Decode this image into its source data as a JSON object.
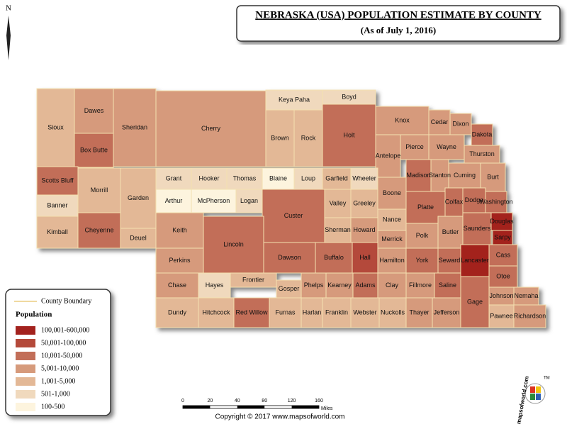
{
  "header": {
    "title": "NEBRASKA (USA) POPULATION ESTIMATE BY COUNTY",
    "subtitle": "(As of July 1, 2016)"
  },
  "compass": "N",
  "legend": {
    "boundary": "County Boundary",
    "title": "Population",
    "items": [
      {
        "label": "100,001-600,000",
        "color": "#a3221e"
      },
      {
        "label": "50,001-100,000",
        "color": "#b4493a"
      },
      {
        "label": "10,001-50,000",
        "color": "#c26e58"
      },
      {
        "label": "5,001-10,000",
        "color": "#d69a7b"
      },
      {
        "label": "1,001-5,000",
        "color": "#e3b896"
      },
      {
        "label": "501-1,000",
        "color": "#f0d9bd"
      },
      {
        "label": "100-500",
        "color": "#fdf4de"
      }
    ]
  },
  "counties": [
    {
      "name": "Sioux",
      "color": "#e3b896"
    },
    {
      "name": "Dawes",
      "color": "#d69a7b"
    },
    {
      "name": "Box Butte",
      "color": "#c26e58"
    },
    {
      "name": "Sheridan",
      "color": "#d69a7b"
    },
    {
      "name": "Cherry",
      "color": "#d69a7b"
    },
    {
      "name": "Keya Paha",
      "color": "#f0d9bd"
    },
    {
      "name": "Brown",
      "color": "#e3b896"
    },
    {
      "name": "Rock",
      "color": "#e3b896"
    },
    {
      "name": "Boyd",
      "color": "#f0d9bd"
    },
    {
      "name": "Holt",
      "color": "#c26e58"
    },
    {
      "name": "Knox",
      "color": "#d69a7b"
    },
    {
      "name": "Cedar",
      "color": "#d69a7b"
    },
    {
      "name": "Dixon",
      "color": "#d69a7b"
    },
    {
      "name": "Dakota",
      "color": "#c26e58"
    },
    {
      "name": "Pierce",
      "color": "#d69a7b"
    },
    {
      "name": "Antelope",
      "color": "#d69a7b"
    },
    {
      "name": "Wayne",
      "color": "#d69a7b"
    },
    {
      "name": "Thurston",
      "color": "#d69a7b"
    },
    {
      "name": "Scotts Bluff",
      "color": "#c26e58"
    },
    {
      "name": "Banner",
      "color": "#f0d9bd"
    },
    {
      "name": "Kimball",
      "color": "#e3b896"
    },
    {
      "name": "Morrill",
      "color": "#e3b896"
    },
    {
      "name": "Cheyenne",
      "color": "#c26e58"
    },
    {
      "name": "Garden",
      "color": "#e3b896"
    },
    {
      "name": "Deuel",
      "color": "#e3b896"
    },
    {
      "name": "Keith",
      "color": "#d69a7b"
    },
    {
      "name": "Grant",
      "color": "#f0d9bd"
    },
    {
      "name": "Hooker",
      "color": "#f0d9bd"
    },
    {
      "name": "Thomas",
      "color": "#f0d9bd"
    },
    {
      "name": "Blaine",
      "color": "#fdf4de"
    },
    {
      "name": "Loup",
      "color": "#f0d9bd"
    },
    {
      "name": "Garfield",
      "color": "#e3b896"
    },
    {
      "name": "Wheeler",
      "color": "#f0d9bd"
    },
    {
      "name": "Arthur",
      "color": "#fdf4de"
    },
    {
      "name": "McPherson",
      "color": "#fdf4de"
    },
    {
      "name": "Logan",
      "color": "#f0d9bd"
    },
    {
      "name": "Custer",
      "color": "#c26e58"
    },
    {
      "name": "Valley",
      "color": "#e3b896"
    },
    {
      "name": "Greeley",
      "color": "#e3b896"
    },
    {
      "name": "Boone",
      "color": "#d69a7b"
    },
    {
      "name": "Madison",
      "color": "#c26e58"
    },
    {
      "name": "Stanton",
      "color": "#d69a7b"
    },
    {
      "name": "Cuming",
      "color": "#d69a7b"
    },
    {
      "name": "Burt",
      "color": "#d69a7b"
    },
    {
      "name": "Platte",
      "color": "#c26e58"
    },
    {
      "name": "Colfax",
      "color": "#c26e58"
    },
    {
      "name": "Dodge",
      "color": "#c26e58"
    },
    {
      "name": "Washington",
      "color": "#c26e58"
    },
    {
      "name": "Nance",
      "color": "#e3b896"
    },
    {
      "name": "Sherman",
      "color": "#e3b896"
    },
    {
      "name": "Howard",
      "color": "#d69a7b"
    },
    {
      "name": "Merrick",
      "color": "#d69a7b"
    },
    {
      "name": "Polk",
      "color": "#d69a7b"
    },
    {
      "name": "Butler",
      "color": "#d69a7b"
    },
    {
      "name": "Saunders",
      "color": "#c26e58"
    },
    {
      "name": "Douglas",
      "color": "#a3221e"
    },
    {
      "name": "Sarpy",
      "color": "#a3221e"
    },
    {
      "name": "Perkins",
      "color": "#d69a7b"
    },
    {
      "name": "Lincoln",
      "color": "#c26e58"
    },
    {
      "name": "Dawson",
      "color": "#c26e58"
    },
    {
      "name": "Buffalo",
      "color": "#c26e58"
    },
    {
      "name": "Hall",
      "color": "#b4493a"
    },
    {
      "name": "Hamilton",
      "color": "#d69a7b"
    },
    {
      "name": "York",
      "color": "#c26e58"
    },
    {
      "name": "Seward",
      "color": "#c26e58"
    },
    {
      "name": "Lancaster",
      "color": "#a3221e"
    },
    {
      "name": "Cass",
      "color": "#c26e58"
    },
    {
      "name": "Chase",
      "color": "#d69a7b"
    },
    {
      "name": "Hayes",
      "color": "#f0d9bd"
    },
    {
      "name": "Frontier",
      "color": "#e3b896"
    },
    {
      "name": "Gosper",
      "color": "#e3b896"
    },
    {
      "name": "Phelps",
      "color": "#d69a7b"
    },
    {
      "name": "Kearney",
      "color": "#d69a7b"
    },
    {
      "name": "Adams",
      "color": "#c26e58"
    },
    {
      "name": "Clay",
      "color": "#d69a7b"
    },
    {
      "name": "Fillmore",
      "color": "#d69a7b"
    },
    {
      "name": "Saline",
      "color": "#c26e58"
    },
    {
      "name": "Otoe",
      "color": "#c26e58"
    },
    {
      "name": "Dundy",
      "color": "#e3b896"
    },
    {
      "name": "Hitchcock",
      "color": "#e3b896"
    },
    {
      "name": "Red Willow",
      "color": "#c26e58"
    },
    {
      "name": "Furnas",
      "color": "#e3b896"
    },
    {
      "name": "Harlan",
      "color": "#e3b896"
    },
    {
      "name": "Franklin",
      "color": "#e3b896"
    },
    {
      "name": "Webster",
      "color": "#e3b896"
    },
    {
      "name": "Nuckolls",
      "color": "#e3b896"
    },
    {
      "name": "Thayer",
      "color": "#d69a7b"
    },
    {
      "name": "Jefferson",
      "color": "#d69a7b"
    },
    {
      "name": "Gage",
      "color": "#c26e58"
    },
    {
      "name": "Johnson",
      "color": "#d69a7b"
    },
    {
      "name": "Nemaha",
      "color": "#d69a7b"
    },
    {
      "name": "Pawnee",
      "color": "#e3b896"
    },
    {
      "name": "Richardson",
      "color": "#d69a7b"
    }
  ],
  "scale": {
    "ticks": [
      "0",
      "20",
      "40",
      "80",
      "120",
      "160"
    ],
    "unit": "Miles"
  },
  "copyright": "Copyright © 2017 www.mapsofworld.com",
  "logo": {
    "text": "mapsofworld.com",
    "tm": "TM"
  }
}
